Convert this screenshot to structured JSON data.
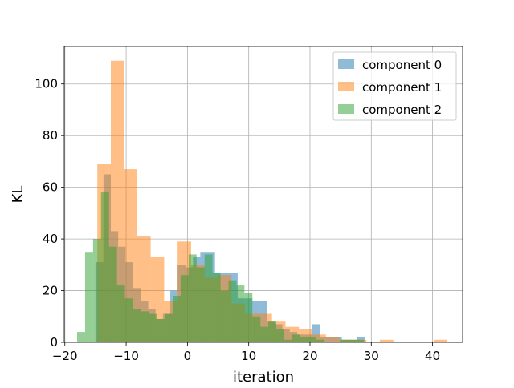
{
  "chart_data": {
    "type": "histogram",
    "title": "",
    "xlabel": "iteration",
    "ylabel": "KL",
    "xlim": [
      -20.1,
      44.9
    ],
    "ylim": [
      0,
      114.5
    ],
    "xticks": [
      -20,
      -10,
      0,
      10,
      20,
      30,
      40
    ],
    "yticks": [
      0,
      20,
      40,
      60,
      80,
      100
    ],
    "grid": true,
    "legend": {
      "position": "top-right"
    },
    "series": [
      {
        "name": "component 0",
        "color": "#1f77b4",
        "opacity": 0.5,
        "bins": [
          [
            -15.0,
            -13.7,
            31
          ],
          [
            -13.7,
            -12.5,
            65
          ],
          [
            -12.5,
            -11.3,
            43
          ],
          [
            -11.3,
            -10.1,
            37
          ],
          [
            -10.1,
            -8.9,
            31
          ],
          [
            -8.9,
            -7.6,
            21
          ],
          [
            -7.6,
            -6.4,
            16
          ],
          [
            -6.4,
            -5.2,
            13
          ],
          [
            -5.2,
            -4.0,
            9
          ],
          [
            -4.0,
            -2.8,
            11
          ],
          [
            -2.8,
            -1.6,
            20
          ],
          [
            -1.6,
            -0.3,
            30
          ],
          [
            -0.3,
            0.9,
            29
          ],
          [
            0.9,
            2.1,
            33
          ],
          [
            2.1,
            3.3,
            35
          ],
          [
            3.3,
            4.5,
            35
          ],
          [
            4.5,
            5.7,
            27
          ],
          [
            5.7,
            7.0,
            27
          ],
          [
            7.0,
            8.2,
            27
          ],
          [
            8.2,
            9.4,
            17
          ],
          [
            9.4,
            10.6,
            17
          ],
          [
            10.6,
            11.8,
            16
          ],
          [
            11.8,
            13.0,
            16
          ],
          [
            13.0,
            14.3,
            8
          ],
          [
            14.3,
            15.5,
            7
          ],
          [
            15.5,
            16.7,
            5
          ],
          [
            16.7,
            17.9,
            4
          ],
          [
            17.9,
            19.1,
            3
          ],
          [
            19.1,
            20.3,
            3
          ],
          [
            20.3,
            21.6,
            7
          ],
          [
            21.6,
            22.8,
            2
          ],
          [
            22.8,
            24.0,
            2
          ],
          [
            24.0,
            25.2,
            2
          ],
          [
            25.2,
            26.4,
            1
          ],
          [
            26.4,
            27.6,
            1
          ],
          [
            27.6,
            28.9,
            2
          ]
        ]
      },
      {
        "name": "component 1",
        "color": "#ff7f0e",
        "opacity": 0.5,
        "bins": [
          [
            -14.7,
            -12.5,
            69
          ],
          [
            -12.5,
            -10.4,
            109
          ],
          [
            -10.4,
            -8.2,
            67
          ],
          [
            -8.2,
            -6.0,
            41
          ],
          [
            -6.0,
            -3.8,
            33
          ],
          [
            -3.8,
            -1.6,
            16
          ],
          [
            -1.6,
            0.6,
            39
          ],
          [
            0.6,
            2.8,
            30
          ],
          [
            2.8,
            5.0,
            25
          ],
          [
            5.0,
            7.2,
            26
          ],
          [
            7.2,
            9.4,
            15
          ],
          [
            9.4,
            11.6,
            11
          ],
          [
            11.6,
            13.8,
            11
          ],
          [
            13.8,
            16.0,
            8
          ],
          [
            16.0,
            18.2,
            6
          ],
          [
            18.2,
            20.4,
            5
          ],
          [
            20.4,
            22.6,
            3
          ],
          [
            22.6,
            24.8,
            2
          ],
          [
            24.8,
            27.0,
            1
          ],
          [
            27.0,
            29.2,
            1
          ],
          [
            29.2,
            31.4,
            0
          ],
          [
            31.4,
            33.6,
            1
          ],
          [
            33.6,
            35.8,
            0
          ],
          [
            35.8,
            38.0,
            0
          ],
          [
            38.0,
            40.2,
            0
          ],
          [
            40.2,
            42.4,
            1
          ]
        ]
      },
      {
        "name": "component 2",
        "color": "#2ca02c",
        "opacity": 0.5,
        "bins": [
          [
            -18.0,
            -16.7,
            4
          ],
          [
            -16.7,
            -15.4,
            35
          ],
          [
            -15.4,
            -14.1,
            40
          ],
          [
            -14.1,
            -12.8,
            58
          ],
          [
            -12.8,
            -11.5,
            37
          ],
          [
            -11.5,
            -10.2,
            22
          ],
          [
            -10.2,
            -8.9,
            17
          ],
          [
            -8.9,
            -7.6,
            13
          ],
          [
            -7.6,
            -6.3,
            12
          ],
          [
            -6.3,
            -5.0,
            11
          ],
          [
            -5.0,
            -3.7,
            9
          ],
          [
            -3.7,
            -2.4,
            11
          ],
          [
            -2.4,
            -1.1,
            18
          ],
          [
            -1.1,
            0.2,
            26
          ],
          [
            0.2,
            1.5,
            34
          ],
          [
            1.5,
            2.8,
            29
          ],
          [
            2.8,
            4.1,
            34
          ],
          [
            4.1,
            5.4,
            27
          ],
          [
            5.4,
            6.7,
            20
          ],
          [
            6.7,
            8.0,
            24
          ],
          [
            8.0,
            9.3,
            22
          ],
          [
            9.3,
            10.6,
            19
          ],
          [
            10.6,
            11.9,
            10
          ],
          [
            11.9,
            13.2,
            6
          ],
          [
            13.2,
            14.5,
            8
          ],
          [
            14.5,
            15.8,
            5
          ],
          [
            15.8,
            17.1,
            1
          ],
          [
            17.1,
            18.4,
            3
          ],
          [
            18.4,
            19.7,
            2
          ],
          [
            19.7,
            21.0,
            2
          ],
          [
            21.0,
            22.3,
            1
          ],
          [
            22.3,
            23.6,
            0
          ],
          [
            23.6,
            24.9,
            0
          ],
          [
            24.9,
            26.2,
            1
          ],
          [
            26.2,
            27.5,
            1
          ],
          [
            27.5,
            28.8,
            1
          ]
        ]
      }
    ]
  }
}
